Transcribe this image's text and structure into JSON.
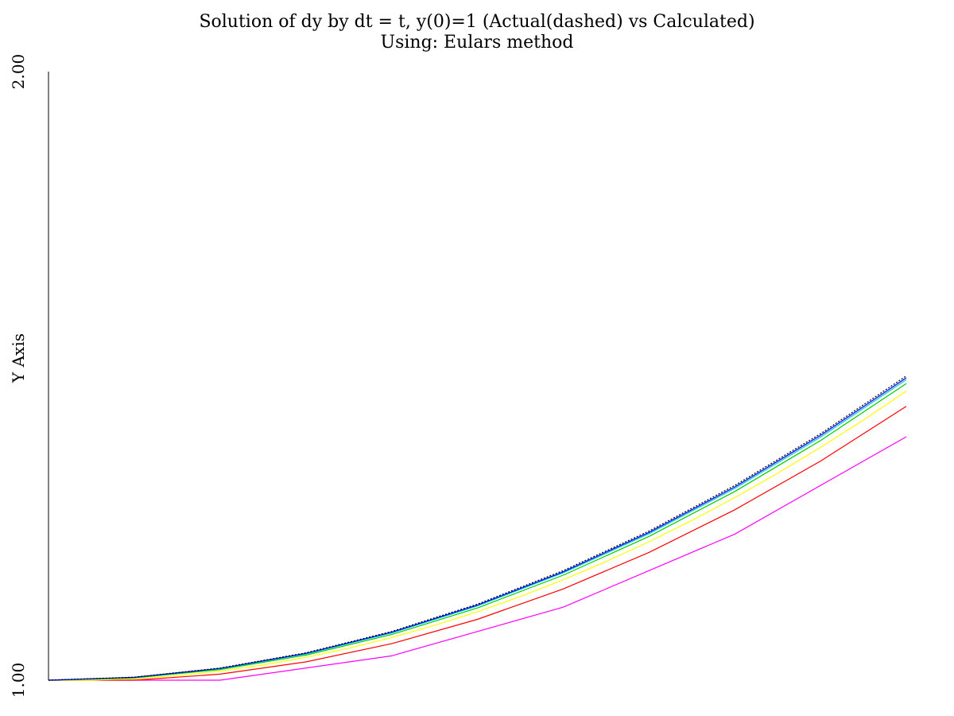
{
  "chart_data": {
    "type": "line",
    "title": "Solution of dy by dt = t, y(0)=1 (Actual(dashed) vs Calculated)",
    "subtitle": "Using: Eulars method",
    "xlabel": "",
    "ylabel": "Y Axis",
    "xlim": [
      0,
      1
    ],
    "ylim": [
      1.0,
      2.0
    ],
    "y_tick_labels": [
      "1.00",
      "2.00"
    ],
    "grid": false,
    "legend": "none",
    "series": [
      {
        "color": "#ff00ff",
        "x": [
          0,
          0.2,
          0.4,
          0.6,
          0.8,
          1.0
        ],
        "y": [
          1.0,
          1.0,
          1.04,
          1.12,
          1.24,
          1.4
        ]
      },
      {
        "color": "#ff0000",
        "x": [
          0,
          0.1,
          0.2,
          0.3,
          0.4,
          0.5,
          0.6,
          0.7,
          0.8,
          0.9,
          1.0
        ],
        "y": [
          1.0,
          1.0,
          1.01,
          1.03,
          1.06,
          1.1,
          1.15,
          1.21,
          1.28,
          1.36,
          1.45
        ]
      },
      {
        "color": "#ffff00",
        "x": [
          0,
          0.05,
          0.1,
          0.15,
          0.2,
          0.25,
          0.3,
          0.35,
          0.4,
          0.45,
          0.5,
          0.55,
          0.6,
          0.65,
          0.7,
          0.75,
          0.8,
          0.85,
          0.9,
          0.95,
          1.0
        ],
        "y": [
          1.0,
          1.0,
          1.0025,
          1.0075,
          1.015,
          1.025,
          1.0375,
          1.0525,
          1.07,
          1.09,
          1.1125,
          1.1375,
          1.165,
          1.195,
          1.2275,
          1.2625,
          1.3,
          1.34,
          1.3825,
          1.4275,
          1.475
        ]
      },
      {
        "color": "#00cc00",
        "x": [
          0,
          0.1,
          0.2,
          0.3,
          0.4,
          0.5,
          0.6,
          0.7,
          0.8,
          0.9,
          1.0
        ],
        "y": [
          1.0,
          1.0037,
          1.0175,
          1.0412,
          1.075,
          1.1187,
          1.1725,
          1.2362,
          1.31,
          1.3937,
          1.4875
        ]
      },
      {
        "color": "#00cccc",
        "x": [
          0,
          0.1,
          0.2,
          0.3,
          0.4,
          0.5,
          0.6,
          0.7,
          0.8,
          0.9,
          1.0
        ],
        "y": [
          1.0,
          1.0044,
          1.0188,
          1.0431,
          1.0775,
          1.1219,
          1.1763,
          1.2406,
          1.315,
          1.3994,
          1.4938
        ]
      },
      {
        "color": "#0000ff",
        "x": [
          0,
          0.1,
          0.2,
          0.3,
          0.4,
          0.5,
          0.6,
          0.7,
          0.8,
          0.9,
          1.0
        ],
        "y": [
          1.0,
          1.0047,
          1.0194,
          1.0441,
          1.0788,
          1.1234,
          1.1781,
          1.2428,
          1.3175,
          1.4022,
          1.4969
        ]
      },
      {
        "color": "#000000",
        "dashed": true,
        "x": [
          0,
          0.1,
          0.2,
          0.3,
          0.4,
          0.5,
          0.6,
          0.7,
          0.8,
          0.9,
          1.0
        ],
        "y": [
          1.0,
          1.005,
          1.02,
          1.045,
          1.08,
          1.125,
          1.18,
          1.245,
          1.32,
          1.405,
          1.5
        ]
      }
    ]
  }
}
